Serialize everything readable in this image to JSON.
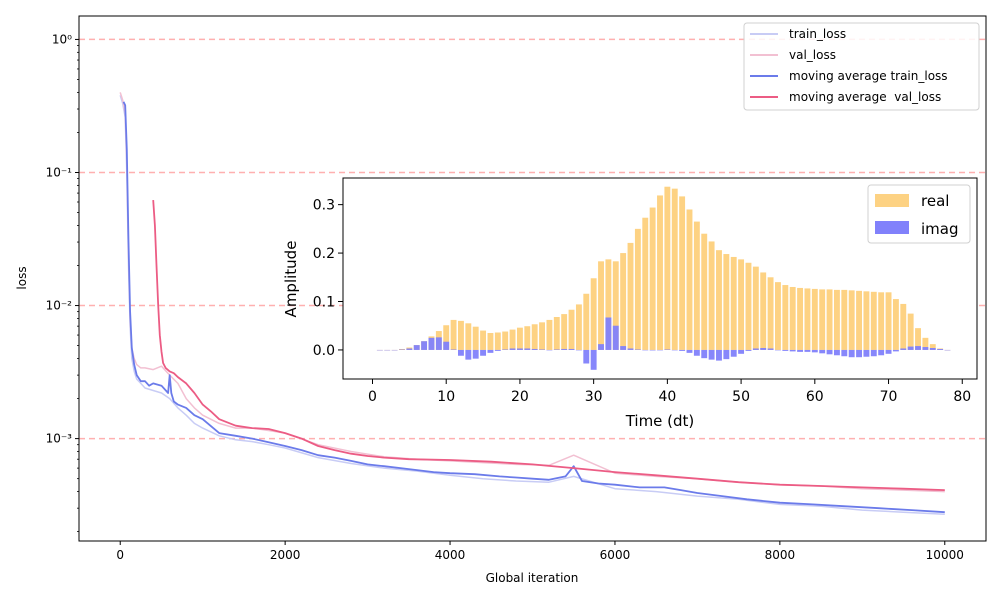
{
  "chart_data": [
    {
      "type": "line",
      "xlabel": "Global iteration",
      "ylabel": "loss",
      "yscale": "log",
      "xlim": [
        -500,
        10500
      ],
      "ylim": [
        0.00017,
        1.5
      ],
      "x_ticks": [
        0,
        2000,
        4000,
        6000,
        8000,
        10000
      ],
      "x_tick_labels": [
        "0",
        "2000",
        "4000",
        "6000",
        "8000",
        "10000"
      ],
      "y_ticks": [
        0.001,
        0.01,
        0.1,
        1
      ],
      "y_tick_labels": [
        "10⁻³",
        "10⁻²",
        "10⁻¹",
        "10⁰"
      ],
      "reference_lines": [
        1,
        0.1,
        0.01,
        0.001
      ],
      "reference_line_color": "#ffb0b0",
      "legend_position": "top-right",
      "series": [
        {
          "name": "train_loss",
          "color": "#c8ccf5",
          "x": [
            0,
            30,
            60,
            80,
            100,
            120,
            140,
            170,
            200,
            250,
            300,
            400,
            500,
            600,
            700,
            800,
            900,
            1000,
            1200,
            1400,
            1600,
            1800,
            2000,
            2400,
            2800,
            3200,
            3600,
            4000,
            4400,
            4800,
            5200,
            5500,
            6000,
            6500,
            7000,
            7500,
            8000,
            8500,
            9000,
            9500,
            10000
          ],
          "y": [
            0.38,
            0.33,
            0.26,
            0.1,
            0.02,
            0.007,
            0.004,
            0.0032,
            0.0028,
            0.0026,
            0.0024,
            0.0023,
            0.0022,
            0.002,
            0.0017,
            0.0015,
            0.0013,
            0.0012,
            0.00105,
            0.00098,
            0.00095,
            0.0009,
            0.00085,
            0.00072,
            0.00065,
            0.0006,
            0.00057,
            0.00053,
            0.0005,
            0.00048,
            0.00047,
            0.00052,
            0.00042,
            0.0004,
            0.00037,
            0.00035,
            0.00032,
            0.00031,
            0.00029,
            0.00028,
            0.00027
          ]
        },
        {
          "name": "val_loss",
          "color": "#f2c0d2",
          "x": [
            0,
            30,
            60,
            80,
            100,
            120,
            140,
            170,
            200,
            250,
            300,
            400,
            500,
            600,
            700,
            800,
            900,
            1000,
            1200,
            1400,
            1600,
            1800,
            2000,
            2400,
            2800,
            3200,
            3600,
            4000,
            4400,
            4800,
            5200,
            5500,
            6000,
            6500,
            7000,
            7500,
            8000,
            8500,
            9000,
            9500,
            10000
          ],
          "y": [
            0.4,
            0.35,
            0.28,
            0.12,
            0.025,
            0.008,
            0.0048,
            0.004,
            0.0036,
            0.0034,
            0.0034,
            0.0033,
            0.0035,
            0.003,
            0.0026,
            0.002,
            0.0017,
            0.0015,
            0.0013,
            0.0012,
            0.0012,
            0.00115,
            0.0011,
            0.0009,
            0.0008,
            0.00073,
            0.0007,
            0.00068,
            0.00066,
            0.00064,
            0.00063,
            0.00075,
            0.00055,
            0.00052,
            0.0005,
            0.00047,
            0.00045,
            0.00044,
            0.00042,
            0.00041,
            0.0004
          ]
        },
        {
          "name": "moving average train_loss",
          "color": "#6b7bea",
          "x": [
            40,
            60,
            80,
            100,
            120,
            140,
            170,
            200,
            250,
            300,
            350,
            400,
            500,
            580,
            600,
            620,
            650,
            700,
            800,
            900,
            1000,
            1200,
            1400,
            1600,
            1800,
            2000,
            2200,
            2400,
            2600,
            2800,
            3000,
            3200,
            3500,
            3800,
            4000,
            4300,
            4600,
            4800,
            5000,
            5200,
            5400,
            5500,
            5600,
            5800,
            6000,
            6300,
            6600,
            6800,
            7000,
            7300,
            7600,
            8000,
            8400,
            8800,
            9200,
            9600,
            10000
          ],
          "y": [
            0.34,
            0.32,
            0.15,
            0.03,
            0.009,
            0.0048,
            0.0036,
            0.003,
            0.0027,
            0.0027,
            0.0025,
            0.0026,
            0.0025,
            0.0022,
            0.003,
            0.0022,
            0.0019,
            0.0018,
            0.0017,
            0.0015,
            0.0014,
            0.0011,
            0.00105,
            0.001,
            0.00094,
            0.00088,
            0.00082,
            0.00075,
            0.00072,
            0.00068,
            0.00064,
            0.00062,
            0.00059,
            0.00056,
            0.00055,
            0.00054,
            0.00052,
            0.00051,
            0.0005,
            0.00049,
            0.00052,
            0.00062,
            0.00048,
            0.00046,
            0.00045,
            0.00043,
            0.00043,
            0.00041,
            0.00039,
            0.00037,
            0.00035,
            0.00033,
            0.00032,
            0.00031,
            0.0003,
            0.00029,
            0.00028
          ]
        },
        {
          "name": "moving average  val_loss",
          "color": "#ec5c84",
          "x": [
            400,
            420,
            440,
            460,
            480,
            500,
            520,
            550,
            600,
            650,
            700,
            800,
            900,
            1000,
            1100,
            1200,
            1400,
            1600,
            1800,
            2000,
            2200,
            2400,
            2600,
            2800,
            3000,
            3200,
            3500,
            4000,
            4500,
            5000,
            5500,
            6000,
            6500,
            7000,
            7500,
            8000,
            8500,
            9000,
            9500,
            10000
          ],
          "y": [
            0.062,
            0.04,
            0.02,
            0.01,
            0.006,
            0.0045,
            0.0037,
            0.0034,
            0.0032,
            0.0031,
            0.0029,
            0.0026,
            0.0022,
            0.0018,
            0.0016,
            0.0014,
            0.00125,
            0.0012,
            0.00118,
            0.0011,
            0.001,
            0.00088,
            0.00082,
            0.00077,
            0.00074,
            0.00072,
            0.0007,
            0.00069,
            0.00067,
            0.00064,
            0.0006,
            0.00056,
            0.00053,
            0.0005,
            0.00047,
            0.00045,
            0.00044,
            0.00043,
            0.00042,
            0.00041
          ]
        }
      ]
    },
    {
      "type": "bar",
      "xlabel": "Time (dt)",
      "ylabel": "Amplitude",
      "xlim": [
        -4,
        82
      ],
      "ylim": [
        -0.06,
        0.355
      ],
      "x_ticks": [
        0,
        10,
        20,
        30,
        40,
        50,
        60,
        70,
        80
      ],
      "x_tick_labels": [
        "0",
        "10",
        "20",
        "30",
        "40",
        "50",
        "60",
        "70",
        "80"
      ],
      "y_ticks": [
        0.0,
        0.1,
        0.2,
        0.3
      ],
      "y_tick_labels": [
        "0.0",
        "0.1",
        "0.2",
        "0.3"
      ],
      "legend_position": "top-right",
      "x": [
        1,
        2,
        3,
        4,
        5,
        6,
        7,
        8,
        9,
        10,
        11,
        12,
        13,
        14,
        15,
        16,
        17,
        18,
        19,
        20,
        21,
        22,
        23,
        24,
        25,
        26,
        27,
        28,
        29,
        30,
        31,
        32,
        33,
        34,
        35,
        36,
        37,
        38,
        39,
        40,
        41,
        42,
        43,
        44,
        45,
        46,
        47,
        48,
        49,
        50,
        51,
        52,
        53,
        54,
        55,
        56,
        57,
        58,
        59,
        60,
        61,
        62,
        63,
        64,
        65,
        66,
        67,
        68,
        69,
        70,
        71,
        72,
        73,
        74,
        75,
        76,
        77,
        78
      ],
      "series": [
        {
          "name": "real",
          "color": "#fdd283",
          "values": [
            0,
            0,
            0,
            0.002,
            0.005,
            0.01,
            0.018,
            0.028,
            0.039,
            0.051,
            0.062,
            0.06,
            0.055,
            0.048,
            0.04,
            0.035,
            0.036,
            0.038,
            0.042,
            0.046,
            0.049,
            0.053,
            0.057,
            0.062,
            0.068,
            0.074,
            0.083,
            0.094,
            0.116,
            0.148,
            0.183,
            0.187,
            0.183,
            0.2,
            0.221,
            0.25,
            0.273,
            0.294,
            0.319,
            0.337,
            0.333,
            0.317,
            0.29,
            0.265,
            0.24,
            0.224,
            0.206,
            0.198,
            0.192,
            0.187,
            0.18,
            0.172,
            0.16,
            0.15,
            0.14,
            0.134,
            0.13,
            0.128,
            0.127,
            0.126,
            0.125,
            0.125,
            0.124,
            0.124,
            0.123,
            0.122,
            0.121,
            0.12,
            0.119,
            0.119,
            0.105,
            0.095,
            0.075,
            0.045,
            0.025,
            0.012,
            0.003,
            0
          ]
        },
        {
          "name": "imag",
          "color": "#8181fb",
          "values": [
            0,
            0,
            0,
            0.001,
            0.003,
            0.01,
            0.018,
            0.025,
            0.026,
            0.017,
            0.001,
            -0.012,
            -0.02,
            -0.018,
            -0.012,
            -0.006,
            -0.002,
            0.001,
            0.003,
            0.003,
            0.003,
            0.002,
            0.001,
            0.0,
            0.001,
            0.002,
            0.002,
            0.0,
            -0.028,
            -0.041,
            0.012,
            0.067,
            0.05,
            0.008,
            0.003,
            0.001,
            0.0,
            -0.001,
            0.0,
            0.001,
            0.0,
            -0.002,
            -0.006,
            -0.012,
            -0.017,
            -0.02,
            -0.022,
            -0.019,
            -0.014,
            -0.008,
            -0.002,
            0.003,
            0.004,
            0.003,
            0.0,
            -0.002,
            -0.003,
            -0.004,
            -0.004,
            -0.005,
            -0.007,
            -0.009,
            -0.011,
            -0.013,
            -0.015,
            -0.015,
            -0.014,
            -0.013,
            -0.011,
            -0.008,
            -0.003,
            0.003,
            0.007,
            0.008,
            0.006,
            0.004,
            0.002,
            0
          ]
        }
      ]
    }
  ]
}
